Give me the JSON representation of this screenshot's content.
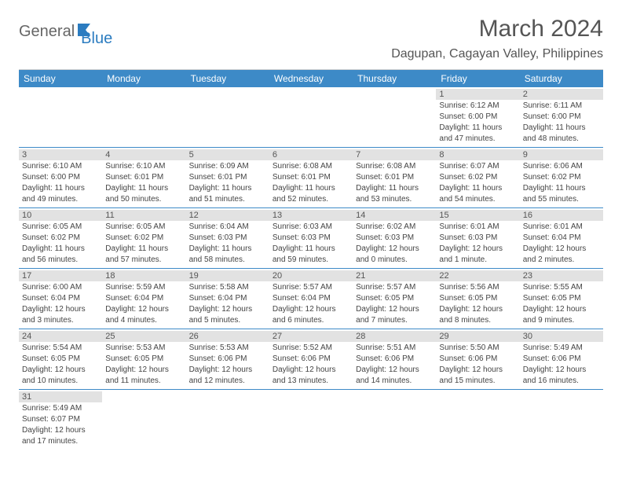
{
  "logo": {
    "general": "General",
    "blue": "Blue"
  },
  "title": "March 2024",
  "location": "Dagupan, Cagayan Valley, Philippines",
  "colors": {
    "header_bg": "#3d8ac7",
    "header_text": "#ffffff",
    "daynum_bg": "#e2e2e2",
    "text": "#444444",
    "logo_gray": "#666666",
    "logo_blue": "#2b7cc0"
  },
  "day_names": [
    "Sunday",
    "Monday",
    "Tuesday",
    "Wednesday",
    "Thursday",
    "Friday",
    "Saturday"
  ],
  "weeks": [
    [
      null,
      null,
      null,
      null,
      null,
      {
        "n": "1",
        "sunrise": "Sunrise: 6:12 AM",
        "sunset": "Sunset: 6:00 PM",
        "d1": "Daylight: 11 hours",
        "d2": "and 47 minutes."
      },
      {
        "n": "2",
        "sunrise": "Sunrise: 6:11 AM",
        "sunset": "Sunset: 6:00 PM",
        "d1": "Daylight: 11 hours",
        "d2": "and 48 minutes."
      }
    ],
    [
      {
        "n": "3",
        "sunrise": "Sunrise: 6:10 AM",
        "sunset": "Sunset: 6:00 PM",
        "d1": "Daylight: 11 hours",
        "d2": "and 49 minutes."
      },
      {
        "n": "4",
        "sunrise": "Sunrise: 6:10 AM",
        "sunset": "Sunset: 6:01 PM",
        "d1": "Daylight: 11 hours",
        "d2": "and 50 minutes."
      },
      {
        "n": "5",
        "sunrise": "Sunrise: 6:09 AM",
        "sunset": "Sunset: 6:01 PM",
        "d1": "Daylight: 11 hours",
        "d2": "and 51 minutes."
      },
      {
        "n": "6",
        "sunrise": "Sunrise: 6:08 AM",
        "sunset": "Sunset: 6:01 PM",
        "d1": "Daylight: 11 hours",
        "d2": "and 52 minutes."
      },
      {
        "n": "7",
        "sunrise": "Sunrise: 6:08 AM",
        "sunset": "Sunset: 6:01 PM",
        "d1": "Daylight: 11 hours",
        "d2": "and 53 minutes."
      },
      {
        "n": "8",
        "sunrise": "Sunrise: 6:07 AM",
        "sunset": "Sunset: 6:02 PM",
        "d1": "Daylight: 11 hours",
        "d2": "and 54 minutes."
      },
      {
        "n": "9",
        "sunrise": "Sunrise: 6:06 AM",
        "sunset": "Sunset: 6:02 PM",
        "d1": "Daylight: 11 hours",
        "d2": "and 55 minutes."
      }
    ],
    [
      {
        "n": "10",
        "sunrise": "Sunrise: 6:05 AM",
        "sunset": "Sunset: 6:02 PM",
        "d1": "Daylight: 11 hours",
        "d2": "and 56 minutes."
      },
      {
        "n": "11",
        "sunrise": "Sunrise: 6:05 AM",
        "sunset": "Sunset: 6:02 PM",
        "d1": "Daylight: 11 hours",
        "d2": "and 57 minutes."
      },
      {
        "n": "12",
        "sunrise": "Sunrise: 6:04 AM",
        "sunset": "Sunset: 6:03 PM",
        "d1": "Daylight: 11 hours",
        "d2": "and 58 minutes."
      },
      {
        "n": "13",
        "sunrise": "Sunrise: 6:03 AM",
        "sunset": "Sunset: 6:03 PM",
        "d1": "Daylight: 11 hours",
        "d2": "and 59 minutes."
      },
      {
        "n": "14",
        "sunrise": "Sunrise: 6:02 AM",
        "sunset": "Sunset: 6:03 PM",
        "d1": "Daylight: 12 hours",
        "d2": "and 0 minutes."
      },
      {
        "n": "15",
        "sunrise": "Sunrise: 6:01 AM",
        "sunset": "Sunset: 6:03 PM",
        "d1": "Daylight: 12 hours",
        "d2": "and 1 minute."
      },
      {
        "n": "16",
        "sunrise": "Sunrise: 6:01 AM",
        "sunset": "Sunset: 6:04 PM",
        "d1": "Daylight: 12 hours",
        "d2": "and 2 minutes."
      }
    ],
    [
      {
        "n": "17",
        "sunrise": "Sunrise: 6:00 AM",
        "sunset": "Sunset: 6:04 PM",
        "d1": "Daylight: 12 hours",
        "d2": "and 3 minutes."
      },
      {
        "n": "18",
        "sunrise": "Sunrise: 5:59 AM",
        "sunset": "Sunset: 6:04 PM",
        "d1": "Daylight: 12 hours",
        "d2": "and 4 minutes."
      },
      {
        "n": "19",
        "sunrise": "Sunrise: 5:58 AM",
        "sunset": "Sunset: 6:04 PM",
        "d1": "Daylight: 12 hours",
        "d2": "and 5 minutes."
      },
      {
        "n": "20",
        "sunrise": "Sunrise: 5:57 AM",
        "sunset": "Sunset: 6:04 PM",
        "d1": "Daylight: 12 hours",
        "d2": "and 6 minutes."
      },
      {
        "n": "21",
        "sunrise": "Sunrise: 5:57 AM",
        "sunset": "Sunset: 6:05 PM",
        "d1": "Daylight: 12 hours",
        "d2": "and 7 minutes."
      },
      {
        "n": "22",
        "sunrise": "Sunrise: 5:56 AM",
        "sunset": "Sunset: 6:05 PM",
        "d1": "Daylight: 12 hours",
        "d2": "and 8 minutes."
      },
      {
        "n": "23",
        "sunrise": "Sunrise: 5:55 AM",
        "sunset": "Sunset: 6:05 PM",
        "d1": "Daylight: 12 hours",
        "d2": "and 9 minutes."
      }
    ],
    [
      {
        "n": "24",
        "sunrise": "Sunrise: 5:54 AM",
        "sunset": "Sunset: 6:05 PM",
        "d1": "Daylight: 12 hours",
        "d2": "and 10 minutes."
      },
      {
        "n": "25",
        "sunrise": "Sunrise: 5:53 AM",
        "sunset": "Sunset: 6:05 PM",
        "d1": "Daylight: 12 hours",
        "d2": "and 11 minutes."
      },
      {
        "n": "26",
        "sunrise": "Sunrise: 5:53 AM",
        "sunset": "Sunset: 6:06 PM",
        "d1": "Daylight: 12 hours",
        "d2": "and 12 minutes."
      },
      {
        "n": "27",
        "sunrise": "Sunrise: 5:52 AM",
        "sunset": "Sunset: 6:06 PM",
        "d1": "Daylight: 12 hours",
        "d2": "and 13 minutes."
      },
      {
        "n": "28",
        "sunrise": "Sunrise: 5:51 AM",
        "sunset": "Sunset: 6:06 PM",
        "d1": "Daylight: 12 hours",
        "d2": "and 14 minutes."
      },
      {
        "n": "29",
        "sunrise": "Sunrise: 5:50 AM",
        "sunset": "Sunset: 6:06 PM",
        "d1": "Daylight: 12 hours",
        "d2": "and 15 minutes."
      },
      {
        "n": "30",
        "sunrise": "Sunrise: 5:49 AM",
        "sunset": "Sunset: 6:06 PM",
        "d1": "Daylight: 12 hours",
        "d2": "and 16 minutes."
      }
    ],
    [
      {
        "n": "31",
        "sunrise": "Sunrise: 5:49 AM",
        "sunset": "Sunset: 6:07 PM",
        "d1": "Daylight: 12 hours",
        "d2": "and 17 minutes."
      },
      null,
      null,
      null,
      null,
      null,
      null
    ]
  ]
}
